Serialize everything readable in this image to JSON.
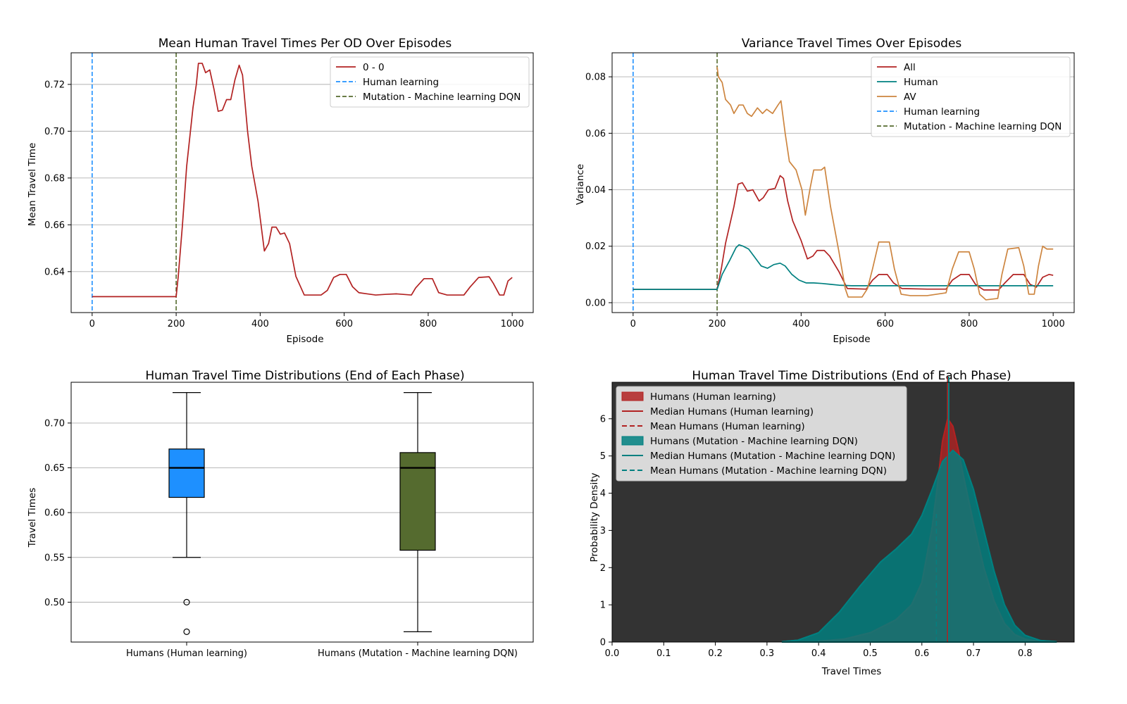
{
  "chart_data": [
    {
      "type": "line",
      "title": "Mean Human Travel Times Per OD Over Episodes",
      "xlabel": "Episode",
      "ylabel": "Mean Travel Time",
      "xlim": [
        -50,
        1050
      ],
      "ylim": [
        0.6225,
        0.7335
      ],
      "xticks": [
        0,
        200,
        400,
        600,
        800,
        1000
      ],
      "xtick_labels": [
        "0",
        "200",
        "400",
        "600",
        "800",
        "1000"
      ],
      "yticks": [
        0.64,
        0.66,
        0.68,
        0.7,
        0.72
      ],
      "ytick_labels": [
        "0.64",
        "0.66",
        "0.68",
        "0.70",
        "0.72"
      ],
      "grid": "y",
      "legend": "top-right",
      "series": [
        {
          "name": "0 - 0",
          "color": "#b22222",
          "style": "solid",
          "points": [
            [
              0,
              0.6293
            ],
            [
              200,
              0.6293
            ],
            [
              205,
              0.638
            ],
            [
              215,
              0.66
            ],
            [
              225,
              0.685
            ],
            [
              240,
              0.71
            ],
            [
              248,
              0.72
            ],
            [
              253,
              0.729
            ],
            [
              262,
              0.729
            ],
            [
              270,
              0.725
            ],
            [
              280,
              0.7262
            ],
            [
              290,
              0.718
            ],
            [
              300,
              0.7085
            ],
            [
              310,
              0.709
            ],
            [
              320,
              0.7135
            ],
            [
              330,
              0.7135
            ],
            [
              340,
              0.722
            ],
            [
              350,
              0.7282
            ],
            [
              358,
              0.724
            ],
            [
              370,
              0.7
            ],
            [
              380,
              0.685
            ],
            [
              395,
              0.67
            ],
            [
              410,
              0.6488
            ],
            [
              420,
              0.652
            ],
            [
              428,
              0.659
            ],
            [
              438,
              0.659
            ],
            [
              448,
              0.656
            ],
            [
              458,
              0.6565
            ],
            [
              470,
              0.652
            ],
            [
              485,
              0.638
            ],
            [
              505,
              0.63
            ],
            [
              530,
              0.63
            ],
            [
              545,
              0.63
            ],
            [
              560,
              0.632
            ],
            [
              575,
              0.6375
            ],
            [
              590,
              0.6388
            ],
            [
              605,
              0.6388
            ],
            [
              620,
              0.6335
            ],
            [
              635,
              0.631
            ],
            [
              655,
              0.6305
            ],
            [
              675,
              0.63
            ],
            [
              700,
              0.6303
            ],
            [
              725,
              0.6305
            ],
            [
              760,
              0.63
            ],
            [
              770,
              0.633
            ],
            [
              790,
              0.637
            ],
            [
              810,
              0.637
            ],
            [
              825,
              0.631
            ],
            [
              845,
              0.63
            ],
            [
              870,
              0.63
            ],
            [
              885,
              0.63
            ],
            [
              900,
              0.6335
            ],
            [
              920,
              0.6375
            ],
            [
              945,
              0.6378
            ],
            [
              955,
              0.635
            ],
            [
              970,
              0.63
            ],
            [
              980,
              0.63
            ],
            [
              990,
              0.636
            ],
            [
              1000,
              0.6375
            ]
          ]
        }
      ],
      "vlines": [
        {
          "name": "Human learning",
          "x": 0,
          "color": "#1e90ff",
          "style": "dashed"
        },
        {
          "name": "Mutation - Machine learning DQN",
          "x": 200,
          "color": "#556b2f",
          "style": "dashed"
        }
      ]
    },
    {
      "type": "line",
      "title": "Variance Travel Times Over Episodes",
      "xlabel": "Episode",
      "ylabel": "Variance",
      "xlim": [
        -50,
        1050
      ],
      "ylim": [
        -0.0035,
        0.0885
      ],
      "xticks": [
        0,
        200,
        400,
        600,
        800,
        1000
      ],
      "xtick_labels": [
        "0",
        "200",
        "400",
        "600",
        "800",
        "1000"
      ],
      "yticks": [
        0.0,
        0.02,
        0.04,
        0.06,
        0.08
      ],
      "ytick_labels": [
        "0.00",
        "0.02",
        "0.04",
        "0.06",
        "0.08"
      ],
      "grid": "y",
      "legend": "top-right",
      "series": [
        {
          "name": "All",
          "color": "#b22222",
          "style": "solid",
          "points": [
            [
              0,
              0.0047
            ],
            [
              200,
              0.0047
            ],
            [
              210,
              0.012
            ],
            [
              220,
              0.021
            ],
            [
              240,
              0.034
            ],
            [
              250,
              0.042
            ],
            [
              260,
              0.0425
            ],
            [
              272,
              0.0395
            ],
            [
              285,
              0.04
            ],
            [
              300,
              0.036
            ],
            [
              310,
              0.0372
            ],
            [
              322,
              0.04
            ],
            [
              338,
              0.0405
            ],
            [
              350,
              0.045
            ],
            [
              358,
              0.044
            ],
            [
              368,
              0.036
            ],
            [
              380,
              0.029
            ],
            [
              400,
              0.022
            ],
            [
              415,
              0.0155
            ],
            [
              428,
              0.0165
            ],
            [
              438,
              0.0185
            ],
            [
              455,
              0.0185
            ],
            [
              468,
              0.0165
            ],
            [
              490,
              0.011
            ],
            [
              510,
              0.005
            ],
            [
              555,
              0.0048
            ],
            [
              570,
              0.008
            ],
            [
              585,
              0.01
            ],
            [
              605,
              0.01
            ],
            [
              620,
              0.007
            ],
            [
              640,
              0.005
            ],
            [
              700,
              0.0048
            ],
            [
              745,
              0.0048
            ],
            [
              760,
              0.008
            ],
            [
              780,
              0.01
            ],
            [
              800,
              0.01
            ],
            [
              815,
              0.0065
            ],
            [
              835,
              0.0045
            ],
            [
              870,
              0.0045
            ],
            [
              885,
              0.007
            ],
            [
              905,
              0.01
            ],
            [
              930,
              0.01
            ],
            [
              945,
              0.0065
            ],
            [
              960,
              0.0055
            ],
            [
              975,
              0.009
            ],
            [
              990,
              0.01
            ],
            [
              1000,
              0.0097
            ]
          ]
        },
        {
          "name": "Human",
          "color": "#008080",
          "style": "solid",
          "points": [
            [
              0,
              0.0047
            ],
            [
              200,
              0.0047
            ],
            [
              212,
              0.01
            ],
            [
              230,
              0.015
            ],
            [
              245,
              0.0195
            ],
            [
              252,
              0.0205
            ],
            [
              262,
              0.02
            ],
            [
              275,
              0.019
            ],
            [
              290,
              0.016
            ],
            [
              305,
              0.013
            ],
            [
              320,
              0.0122
            ],
            [
              335,
              0.0135
            ],
            [
              350,
              0.014
            ],
            [
              362,
              0.013
            ],
            [
              378,
              0.01
            ],
            [
              395,
              0.008
            ],
            [
              412,
              0.007
            ],
            [
              430,
              0.007
            ],
            [
              450,
              0.0068
            ],
            [
              470,
              0.0065
            ],
            [
              490,
              0.0062
            ],
            [
              520,
              0.006
            ],
            [
              600,
              0.006
            ],
            [
              700,
              0.006
            ],
            [
              800,
              0.006
            ],
            [
              900,
              0.006
            ],
            [
              1000,
              0.006
            ]
          ]
        },
        {
          "name": "AV",
          "color": "#cd853f",
          "style": "solid",
          "points": [
            [
              200,
              0.0835
            ],
            [
              203,
              0.08
            ],
            [
              212,
              0.078
            ],
            [
              220,
              0.072
            ],
            [
              232,
              0.07
            ],
            [
              240,
              0.067
            ],
            [
              252,
              0.07
            ],
            [
              262,
              0.07
            ],
            [
              272,
              0.067
            ],
            [
              282,
              0.066
            ],
            [
              296,
              0.069
            ],
            [
              308,
              0.067
            ],
            [
              318,
              0.0685
            ],
            [
              332,
              0.067
            ],
            [
              345,
              0.07
            ],
            [
              352,
              0.0715
            ],
            [
              362,
              0.06
            ],
            [
              372,
              0.05
            ],
            [
              388,
              0.047
            ],
            [
              402,
              0.04
            ],
            [
              410,
              0.031
            ],
            [
              422,
              0.041
            ],
            [
              430,
              0.047
            ],
            [
              448,
              0.047
            ],
            [
              456,
              0.048
            ],
            [
              470,
              0.034
            ],
            [
              490,
              0.018
            ],
            [
              505,
              0.005
            ],
            [
              512,
              0.002
            ],
            [
              545,
              0.002
            ],
            [
              558,
              0.005
            ],
            [
              570,
              0.012
            ],
            [
              585,
              0.0215
            ],
            [
              610,
              0.0215
            ],
            [
              622,
              0.012
            ],
            [
              638,
              0.003
            ],
            [
              660,
              0.0025
            ],
            [
              700,
              0.0025
            ],
            [
              745,
              0.0035
            ],
            [
              760,
              0.012
            ],
            [
              775,
              0.018
            ],
            [
              800,
              0.018
            ],
            [
              812,
              0.012
            ],
            [
              825,
              0.003
            ],
            [
              840,
              0.001
            ],
            [
              868,
              0.0015
            ],
            [
              878,
              0.01
            ],
            [
              892,
              0.019
            ],
            [
              918,
              0.0195
            ],
            [
              930,
              0.013
            ],
            [
              942,
              0.003
            ],
            [
              955,
              0.003
            ],
            [
              965,
              0.013
            ],
            [
              975,
              0.02
            ],
            [
              985,
              0.019
            ],
            [
              1000,
              0.019
            ]
          ]
        }
      ],
      "vlines": [
        {
          "name": "Human learning",
          "x": 0,
          "color": "#1e90ff",
          "style": "dashed"
        },
        {
          "name": "Mutation - Machine learning DQN",
          "x": 200,
          "color": "#556b2f",
          "style": "dashed"
        }
      ]
    },
    {
      "type": "box",
      "title": "Human Travel Time Distributions (End of Each Phase)",
      "xlabel": "",
      "ylabel": "Travel Times",
      "ylim": [
        0.4555,
        0.7455
      ],
      "yticks": [
        0.5,
        0.55,
        0.6,
        0.65,
        0.7
      ],
      "ytick_labels": [
        "0.50",
        "0.55",
        "0.60",
        "0.65",
        "0.70"
      ],
      "grid": "y",
      "categories": [
        "Humans (Human learning)",
        "Humans (Mutation - Machine learning DQN)"
      ],
      "boxes": [
        {
          "name": "Humans (Human learning)",
          "color": "#1e90ff",
          "whislo": 0.55,
          "q1": 0.617,
          "med": 0.65,
          "q3": 0.671,
          "whishi": 0.734,
          "fliers": [
            0.5,
            0.467
          ]
        },
        {
          "name": "Humans (Mutation - Machine learning DQN)",
          "color": "#556b2f",
          "whislo": 0.467,
          "q1": 0.558,
          "med": 0.65,
          "q3": 0.667,
          "whishi": 0.734,
          "fliers": []
        }
      ]
    },
    {
      "type": "area",
      "title": "Human Travel Time Distributions (End of Each Phase)",
      "xlabel": "Travel Times",
      "ylabel": "Probability Density",
      "xlim": [
        0.0,
        0.895
      ],
      "ylim": [
        0,
        6.98
      ],
      "xticks": [
        0.0,
        0.1,
        0.2,
        0.3,
        0.4,
        0.5,
        0.6,
        0.7,
        0.8
      ],
      "xtick_labels": [
        "0.0",
        "0.1",
        "0.2",
        "0.3",
        "0.4",
        "0.5",
        "0.6",
        "0.7",
        "0.8"
      ],
      "yticks": [
        0,
        1,
        2,
        3,
        4,
        5,
        6
      ],
      "ytick_labels": [
        "0",
        "1",
        "2",
        "3",
        "4",
        "5",
        "6"
      ],
      "background": "#333333",
      "legend": "top-left",
      "series": [
        {
          "name": "Humans (Human learning)",
          "color": "#b22222",
          "x": [
            0.4,
            0.45,
            0.5,
            0.55,
            0.58,
            0.6,
            0.62,
            0.63,
            0.64,
            0.65,
            0.66,
            0.67,
            0.68,
            0.7,
            0.72,
            0.74,
            0.76,
            0.78,
            0.8,
            0.82,
            0.84,
            0.86
          ],
          "y": [
            0.02,
            0.08,
            0.25,
            0.6,
            1.0,
            1.6,
            3.1,
            4.2,
            5.4,
            6.0,
            5.8,
            5.2,
            4.5,
            3.2,
            2.0,
            1.1,
            0.5,
            0.2,
            0.08,
            0.03,
            0.01,
            0.0
          ],
          "median": 0.65,
          "mean": 0.628,
          "mean_height": 3.45
        },
        {
          "name": "Humans (Mutation - Machine learning DQN)",
          "color": "#008080",
          "x": [
            0.33,
            0.36,
            0.4,
            0.44,
            0.48,
            0.52,
            0.55,
            0.58,
            0.6,
            0.62,
            0.64,
            0.66,
            0.68,
            0.7,
            0.72,
            0.74,
            0.76,
            0.78,
            0.8,
            0.83,
            0.86
          ],
          "y": [
            0.01,
            0.05,
            0.25,
            0.8,
            1.5,
            2.15,
            2.5,
            2.9,
            3.4,
            4.1,
            4.85,
            5.15,
            4.9,
            4.1,
            3.0,
            1.9,
            1.0,
            0.45,
            0.18,
            0.04,
            0.01
          ],
          "median": 0.65,
          "mean": 0.628,
          "mean_height": 3.45
        }
      ],
      "legend_entries": [
        "Humans (Human learning)",
        "Median Humans (Human learning)",
        "Mean Humans (Human learning)",
        "Humans (Mutation - Machine learning DQN)",
        "Median Humans (Mutation - Machine learning DQN)",
        "Mean Humans (Mutation - Machine learning DQN)"
      ]
    }
  ]
}
